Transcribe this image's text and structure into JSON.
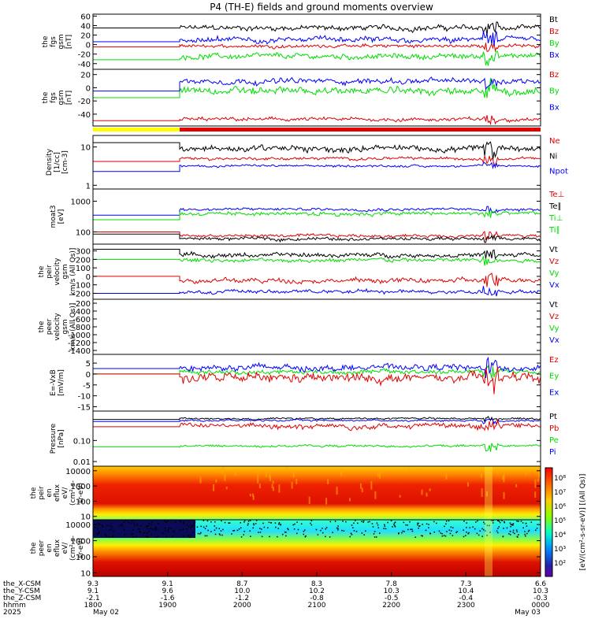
{
  "title": "P4 (TH-E) fields and ground moments overview",
  "chart_data": {
    "type": "line",
    "title": "P4 (TH-E) fields and ground moments overview",
    "colors": {
      "black": "#000000",
      "red": "#e00000",
      "green": "#00dd00",
      "blue": "#0000ff",
      "yellow": "#ffff00"
    },
    "panels": [
      {
        "id": "p1",
        "ylabel": [
          "the",
          "fgs",
          "gsm",
          "[nT]"
        ],
        "yticks": [
          "60",
          "40",
          "20",
          "0",
          "-20",
          "-40"
        ],
        "legend": [
          {
            "name": "Bt",
            "color": "black"
          },
          {
            "name": "Bz",
            "color": "red"
          },
          {
            "name": "By",
            "color": "green"
          },
          {
            "name": "Bx",
            "color": "blue"
          }
        ],
        "series": [
          {
            "color": "black",
            "pre": 35,
            "base": 35,
            "amp": 8
          },
          {
            "color": "red",
            "pre": -5,
            "base": -3,
            "amp": 5
          },
          {
            "color": "green",
            "pre": -32,
            "base": -25,
            "amp": 8
          },
          {
            "color": "blue",
            "pre": 6,
            "base": 10,
            "amp": 8
          }
        ],
        "ylim": [
          -52,
          64
        ],
        "log": false
      },
      {
        "id": "p2",
        "ylabel": [
          "the",
          "fgs",
          "gsm",
          "[nT]"
        ],
        "yticks": [
          "20",
          "0",
          "-20",
          "-40"
        ],
        "legend": [
          {
            "name": "Bz",
            "color": "red"
          },
          {
            "name": "By",
            "color": "green"
          },
          {
            "name": "Bx",
            "color": "blue"
          }
        ],
        "series": [
          {
            "color": "red",
            "pre": -50,
            "base": -48,
            "amp": 4
          },
          {
            "color": "green",
            "pre": -15,
            "base": -5,
            "amp": 8
          },
          {
            "color": "blue",
            "pre": -5,
            "base": 10,
            "amp": 6
          }
        ],
        "ylim": [
          -58,
          28
        ],
        "log": false
      },
      {
        "id": "p3",
        "ylabel": [
          "Density",
          "[1/cc]",
          "[cm-3]"
        ],
        "yticks": [
          "10",
          "1"
        ],
        "legend": [
          {
            "name": "Ne",
            "color": "red"
          },
          {
            "name": "Ni",
            "color": "black"
          },
          {
            "name": "Npot",
            "color": "blue"
          }
        ],
        "series": [
          {
            "color": "black",
            "pre": 13,
            "base": 9,
            "amp": 2.5
          },
          {
            "color": "red",
            "pre": 4.2,
            "base": 5,
            "amp": 0.6
          },
          {
            "color": "blue",
            "pre": 2.3,
            "base": 3.2,
            "amp": 0.3
          }
        ],
        "ylim": [
          0.8,
          20
        ],
        "log": true
      },
      {
        "id": "p4",
        "ylabel": [
          "moat3",
          "[eV]"
        ],
        "yticks": [
          "1000",
          "100"
        ],
        "legend": [
          {
            "name": "Te⊥",
            "color": "red"
          },
          {
            "name": "Te∥",
            "color": "black"
          },
          {
            "name": "Ti⊥",
            "color": "green"
          },
          {
            "name": "Ti∥",
            "color": "green"
          }
        ],
        "series": [
          {
            "color": "blue",
            "pre": 350,
            "base": 550,
            "amp": 80
          },
          {
            "color": "green",
            "pre": 250,
            "base": 400,
            "amp": 80
          },
          {
            "color": "red",
            "pre": 100,
            "base": 75,
            "amp": 12
          },
          {
            "color": "black",
            "pre": 85,
            "base": 60,
            "amp": 10
          }
        ],
        "ylim": [
          40,
          2500
        ],
        "log": true
      },
      {
        "id": "p5",
        "ylabel": [
          "the",
          "peir",
          "velocity",
          "gsm",
          "km/s (All Qs)]"
        ],
        "yticks": [
          "300",
          "200",
          "100",
          "0",
          "-100",
          "-200"
        ],
        "legend": [
          {
            "name": "Vt",
            "color": "black"
          },
          {
            "name": "Vz",
            "color": "red"
          },
          {
            "name": "Vy",
            "color": "green"
          },
          {
            "name": "Vx",
            "color": "blue"
          }
        ],
        "series": [
          {
            "color": "black",
            "pre": 320,
            "base": 250,
            "amp": 35
          },
          {
            "color": "green",
            "pre": 200,
            "base": 190,
            "amp": 30
          },
          {
            "color": "red",
            "pre": 0,
            "base": -50,
            "amp": 40
          },
          {
            "color": "blue",
            "pre": -200,
            "base": -180,
            "amp": 30
          }
        ],
        "ylim": [
          -270,
          380
        ],
        "log": false
      },
      {
        "id": "p6",
        "ylabel": [
          "the",
          "peer",
          "velocity",
          "gsm",
          "km/s (All Qs)]"
        ],
        "yticks": [
          "-200",
          "-400",
          "-600",
          "-800",
          "-1000",
          "-1200",
          "-1400"
        ],
        "legend": [
          {
            "name": "Vt",
            "color": "black"
          },
          {
            "name": "Vz",
            "color": "red"
          },
          {
            "name": "Vy",
            "color": "green"
          },
          {
            "name": "Vx",
            "color": "blue"
          }
        ],
        "series": [],
        "ylim": [
          -1500,
          -100
        ],
        "log": false
      },
      {
        "id": "p7",
        "ylabel": [
          "E=-VxB",
          "[mV/m]"
        ],
        "yticks": [
          "5",
          "0",
          "-5",
          "-10",
          "-15"
        ],
        "legend": [
          {
            "name": "Ez",
            "color": "red"
          },
          {
            "name": "Ey",
            "color": "green"
          },
          {
            "name": "Ex",
            "color": "blue"
          }
        ],
        "series": [
          {
            "color": "green",
            "pre": 0,
            "base": 1,
            "amp": 1.5
          },
          {
            "color": "blue",
            "pre": 2.5,
            "base": 3,
            "amp": 2
          },
          {
            "color": "red",
            "pre": 0,
            "base": -2,
            "amp": 3
          }
        ],
        "ylim": [
          -17,
          9
        ],
        "log": false
      },
      {
        "id": "p8",
        "ylabel": [
          "Pressure",
          "[nPa]"
        ],
        "yticks": [
          "0.10",
          "0.01"
        ],
        "legend": [
          {
            "name": "Pt",
            "color": "black"
          },
          {
            "name": "Pb",
            "color": "red"
          },
          {
            "name": "Pe",
            "color": "green"
          },
          {
            "name": "Pi",
            "color": "blue"
          }
        ],
        "series": [
          {
            "color": "black",
            "pre": 1.0,
            "base": 1.1,
            "amp": 0.15
          },
          {
            "color": "blue",
            "pre": 0.8,
            "base": 0.9,
            "amp": 0.12
          },
          {
            "color": "red",
            "pre": 0.45,
            "base": 0.5,
            "amp": 0.2
          },
          {
            "color": "green",
            "pre": 0.05,
            "base": 0.055,
            "amp": 0.01
          }
        ],
        "ylim": [
          0.006,
          2.5
        ],
        "log": true
      },
      {
        "id": "p9",
        "ylabel": [
          "the",
          "peir",
          "en",
          "eflux",
          "eV/",
          "(cm²-s-",
          "sr-eV)"
        ],
        "yticks": [
          "10000",
          "1000",
          "100",
          "10"
        ],
        "ylim": [
          6,
          20000
        ],
        "log": true
      },
      {
        "id": "p10",
        "ylabel": [
          "the",
          "peer",
          "en",
          "eflux",
          "eV/",
          "(cm²-s-",
          "sr-eV)"
        ],
        "yticks": [
          "10000",
          "1000",
          "100",
          "10"
        ],
        "ylim": [
          6,
          20000
        ],
        "log": true
      }
    ],
    "colorbar": {
      "ticks": [
        "10⁸",
        "10⁷",
        "10⁶",
        "10⁵",
        "10⁴",
        "10³",
        "10²"
      ],
      "label": "[eV/(cm²-s-sr-eV)] [(All Qs)]"
    },
    "x": {
      "row_labels": [
        "the_X-CSM",
        "the_Y-CSM",
        "the_Z-CSM",
        "hhmm",
        "2025"
      ],
      "columns": [
        {
          "vals": [
            "9.3",
            "9.1",
            "-2.1",
            "1800",
            "May 02"
          ]
        },
        {
          "vals": [
            "9.1",
            "9.6",
            "-1.6",
            "1900",
            ""
          ]
        },
        {
          "vals": [
            "8.7",
            "10.0",
            "-1.2",
            "2000",
            ""
          ]
        },
        {
          "vals": [
            "8.3",
            "10.2",
            "-0.8",
            "2100",
            ""
          ]
        },
        {
          "vals": [
            "7.8",
            "10.3",
            "-0.5",
            "2200",
            ""
          ]
        },
        {
          "vals": [
            "7.3",
            "10.4",
            "-0.4",
            "2300",
            ""
          ]
        },
        {
          "vals": [
            "6.6",
            "10.3",
            "-0.3",
            "0000",
            "May 03"
          ]
        }
      ]
    }
  }
}
